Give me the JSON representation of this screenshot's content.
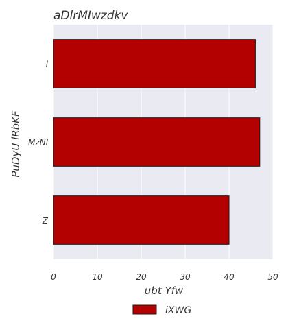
{
  "colors": {
    "plot_background": "#eaeaf2",
    "bar_fill": "#b30000",
    "bar_stroke": "#1a1a1a",
    "grid": "#ffffff"
  },
  "chart_data": {
    "type": "bar",
    "orientation": "horizontal",
    "title": "aDlrMIwzdkv",
    "xlabel": "ubt Yfw",
    "ylabel": "PuDyU lRbKF",
    "categories": [
      "l",
      "MzNl",
      "Z"
    ],
    "series": [
      {
        "name": "iXWG",
        "values": [
          46,
          47,
          40
        ]
      }
    ],
    "xlim": [
      0,
      50
    ],
    "xticks": [
      "0",
      "10",
      "20",
      "30",
      "40",
      "50"
    ],
    "grid": true,
    "legend": {
      "position": "bottom-center"
    }
  }
}
